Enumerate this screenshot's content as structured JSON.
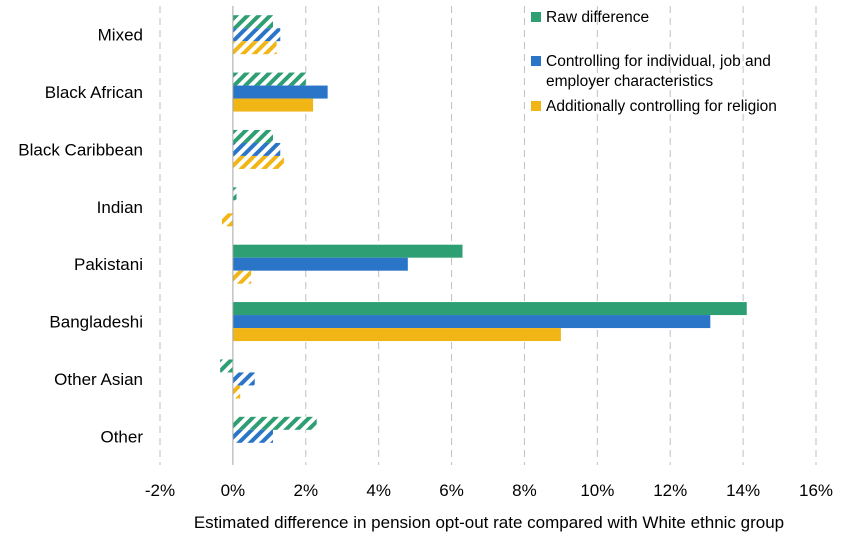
{
  "chart_data": {
    "type": "bar",
    "orientation": "horizontal",
    "categories": [
      "Mixed",
      "Black African",
      "Black Caribbean",
      "Indian",
      "Pakistani",
      "Bangladeshi",
      "Other Asian",
      "Other"
    ],
    "series": [
      {
        "name": "Raw difference",
        "color": "#2e9e73",
        "values": [
          1.1,
          2.0,
          1.1,
          0.1,
          6.3,
          14.1,
          -0.35,
          2.3
        ],
        "significant": [
          false,
          false,
          false,
          false,
          true,
          true,
          false,
          false
        ]
      },
      {
        "name": "Controlling for individual, job and employer characteristics",
        "color": "#2a75c7",
        "values": [
          1.3,
          2.6,
          1.3,
          0.0,
          4.8,
          13.1,
          0.6,
          1.1
        ],
        "significant": [
          false,
          true,
          false,
          false,
          true,
          true,
          false,
          false
        ]
      },
      {
        "name": "Additionally controlling for religion",
        "color": "#f2b516",
        "values": [
          1.2,
          2.2,
          1.4,
          -0.3,
          0.5,
          9.0,
          0.2,
          0.0
        ],
        "significant": [
          false,
          true,
          false,
          false,
          false,
          true,
          false,
          false
        ]
      }
    ],
    "xlabel": "Estimated difference in pension opt-out rate compared with White ethnic group",
    "xlim": [
      -2,
      16
    ],
    "xticks": [
      "-2%",
      "0%",
      "2%",
      "4%",
      "6%",
      "8%",
      "10%",
      "12%",
      "14%",
      "16%"
    ],
    "xtick_values": [
      -2,
      0,
      2,
      4,
      6,
      8,
      10,
      12,
      14,
      16
    ],
    "grid": "vertical dashed",
    "legend_position": "top-right",
    "hatch_meaning": "hatched bars indicate non-significant estimates"
  }
}
